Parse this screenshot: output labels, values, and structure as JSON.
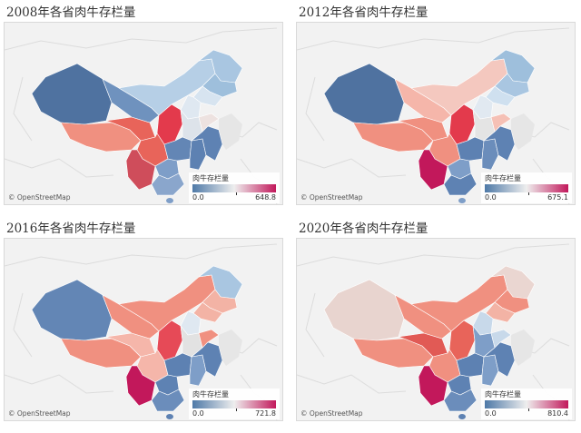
{
  "attribution": "© OpenStreetMap",
  "legend_title": "肉牛存栏量",
  "color_scale": {
    "low": "#4e79a7",
    "mid": "#eeeeee",
    "high": "#c2185b"
  },
  "panels": [
    {
      "title": "2008年各省肉牛存栏量",
      "legend_min": "0.0",
      "legend_max": "648.8"
    },
    {
      "title": "2012年各省肉牛存栏量",
      "legend_min": "0.0",
      "legend_max": "675.1"
    },
    {
      "title": "2016年各省肉牛存栏量",
      "legend_min": "0.0",
      "legend_max": "721.8"
    },
    {
      "title": "2020年各省肉牛存栏量",
      "legend_min": "0.0",
      "legend_max": "810.4"
    }
  ],
  "map_palettes": [
    {
      "xinjiang": "#4f72a0",
      "tibet": "#f09080",
      "qinghai": "#e8645a",
      "gansu": "#6f92be",
      "innermongolia": "#b6cfe6",
      "heilongjiang": "#a9c6e1",
      "jilin": "#9ebfdc",
      "liaoning": "#d7e4f0",
      "hebei": "#dfe8f1",
      "shaanxi": "#e33a4c",
      "henan": "#dde3ea",
      "sichuan": "#e8645a",
      "yunnan": "#cf4d5b",
      "guizhou": "#7e9ec8",
      "guangxi": "#8aa6cc",
      "hunan": "#6386b5",
      "jiangxi": "#5d81b2",
      "east": "#5e82b3",
      "shandong": "#ede2e0"
    },
    {
      "xinjiang": "#4f72a0",
      "tibet": "#f09080",
      "qinghai": "#f09080",
      "gansu": "#f5b6aa",
      "innermongolia": "#f4c8bf",
      "heilongjiang": "#9ebfdc",
      "jilin": "#a9c6e1",
      "liaoning": "#cfe0ef",
      "hebei": "#e1e9f1",
      "shaanxi": "#e33a4c",
      "henan": "#e4e4e4",
      "sichuan": "#f09080",
      "yunnan": "#c2185b",
      "guizhou": "#7e9ec8",
      "guangxi": "#5e82b3",
      "hunan": "#5d81b2",
      "jiangxi": "#6b8dbb",
      "east": "#5e82b3",
      "shandong": "#f5c0b5"
    },
    {
      "xinjiang": "#6386b5",
      "tibet": "#f09080",
      "qinghai": "#f5b6aa",
      "gansu": "#f09080",
      "innermongolia": "#f09080",
      "heilongjiang": "#a9c6e1",
      "jilin": "#f3b3a5",
      "liaoning": "#f3b3a5",
      "hebei": "#dfe8f1",
      "shaanxi": "#e64a57",
      "henan": "#e2e2e2",
      "sichuan": "#f5b6aa",
      "yunnan": "#c2185b",
      "guizhou": "#5e82b3",
      "guangxi": "#6b8dbb",
      "hunan": "#5d81b2",
      "jiangxi": "#7e9ec8",
      "east": "#5e82b3",
      "shandong": "#f09080"
    },
    {
      "xinjiang": "#e8d4cf",
      "tibet": "#f09080",
      "qinghai": "#e15a55",
      "gansu": "#f09080",
      "innermongolia": "#f09080",
      "heilongjiang": "#ead6d1",
      "jilin": "#f09080",
      "liaoning": "#f3b3a5",
      "hebei": "#c8d9ea",
      "shaanxi": "#e8645a",
      "henan": "#7e9ec8",
      "sichuan": "#f09080",
      "yunnan": "#c2185b",
      "guizhou": "#5e82b3",
      "guangxi": "#6b8dbb",
      "hunan": "#5d81b2",
      "jiangxi": "#7e9ec8",
      "east": "#5e82b3",
      "shandong": "#c8d9ea"
    }
  ]
}
